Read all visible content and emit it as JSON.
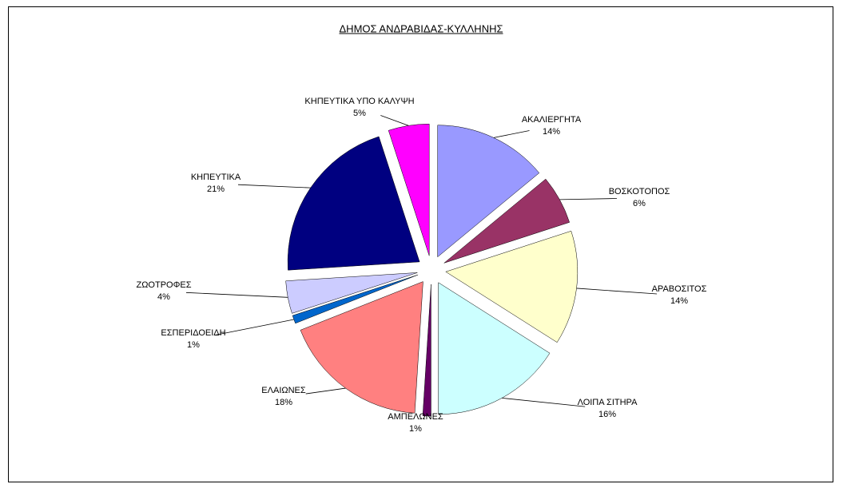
{
  "chart_data": {
    "type": "pie",
    "title": "ΔΗΜΟΣ ΑΝΔΡΑΒΙΔΑΣ-ΚΥΛΛΗΝΗΣ",
    "categories": [
      "ΑΚΑΛΙΕΡΓΗΤΑ",
      "ΒΟΣΚΟΤΟΠΟΣ",
      "ΑΡΑΒΟΣΙΤΟΣ",
      "ΛΟΙΠΑ ΣΙΤΗΡΑ",
      "ΑΜΠΕΛΩΝΕΣ",
      "ΕΛΑΙΩΝΕΣ",
      "ΕΣΠΕΡΙΔΟΕΙΔΗ",
      "ΖΩΟΤΡΟΦΕΣ",
      "ΚΗΠΕΥΤΙΚΑ",
      "ΚΗΠΕΥΤΙΚΑ ΥΠΟ ΚΑΛΥΨΗ"
    ],
    "values": [
      14,
      6,
      14,
      16,
      1,
      18,
      1,
      4,
      21,
      5
    ],
    "value_labels": [
      "14%",
      "6%",
      "14%",
      "16%",
      "1%",
      "18%",
      "1%",
      "4%",
      "21%",
      "5%"
    ],
    "colors": [
      "#9999ff",
      "#993366",
      "#ffffcc",
      "#ccffff",
      "#660066",
      "#ff8080",
      "#0066cc",
      "#ccccff",
      "#000080",
      "#ff00ff"
    ]
  }
}
